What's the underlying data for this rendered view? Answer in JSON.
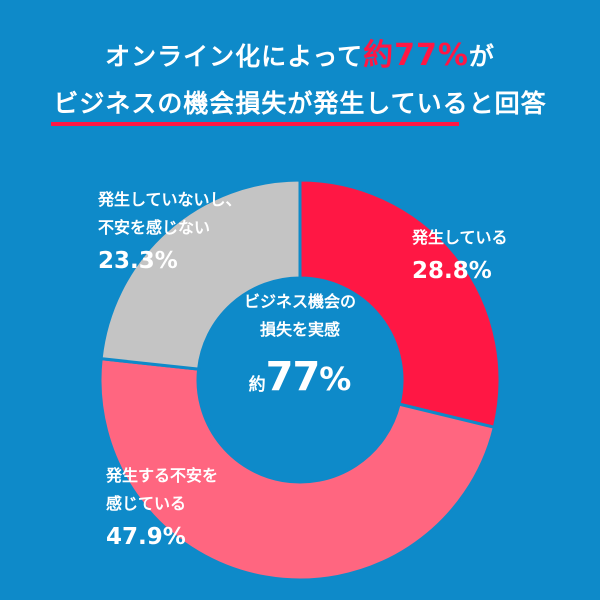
{
  "header": {
    "line1_pre": "オンライン化によって",
    "line1_highlight": "約77%",
    "line1_post": "が",
    "line2": "ビジネスの機会損失が発生していると回答"
  },
  "center": {
    "line1": "ビジネス機会の",
    "line2": "損失を実感",
    "prefix": "約",
    "value": "77",
    "unit": "%"
  },
  "chart_data": {
    "type": "pie",
    "title": "",
    "slices": [
      {
        "label": "発生している",
        "value": 28.8,
        "value_text": "28.8%",
        "color": "#FF1744"
      },
      {
        "label": "発生する不安を感じている",
        "value": 47.9,
        "value_text": "47.9%",
        "color": "#FF6680"
      },
      {
        "label": "発生していないし、不安を感じない",
        "value": 23.3,
        "value_text": "23.3%",
        "color": "#C4C4C4"
      }
    ],
    "label_lines": [
      [
        "発生している"
      ],
      [
        "発生する不安を",
        "感じている"
      ],
      [
        "発生していないし、",
        "不安を感じない"
      ]
    ],
    "legend": "none"
  }
}
